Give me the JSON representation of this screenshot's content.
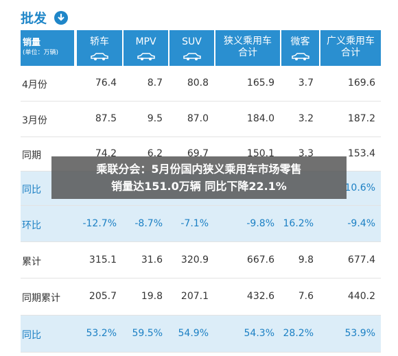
{
  "header": {
    "title": "批发"
  },
  "table": {
    "unit_header": [
      "销量",
      "(单位：万辆)"
    ],
    "columns": [
      [
        "轿车"
      ],
      [
        "MPV"
      ],
      [
        "SUV"
      ],
      [
        "狭义乘用车",
        "合计"
      ],
      [
        "微客"
      ],
      [
        "广义乘用车",
        "合计"
      ]
    ],
    "rows": [
      {
        "label": "4月份",
        "cells": [
          "76.4",
          "8.7",
          "80.8",
          "165.9",
          "3.7",
          "169.6"
        ]
      },
      {
        "label": "3月份",
        "cells": [
          "87.5",
          "9.5",
          "87.0",
          "184.0",
          "3.2",
          "187.2"
        ]
      },
      {
        "label": "同期",
        "cells": [
          "74.2",
          "6.2",
          "69.7",
          "150.1",
          "3.3",
          "153.4"
        ]
      },
      {
        "label": "同比",
        "highlight": true,
        "cells": [
          null,
          null,
          null,
          null,
          null,
          "10.6%"
        ]
      },
      {
        "label": "环比",
        "highlight": true,
        "cells": [
          "-12.7%",
          "-8.7%",
          "-7.1%",
          "-9.8%",
          "16.2%",
          "-9.4%"
        ]
      },
      {
        "label": "累计",
        "cells": [
          "315.1",
          "31.6",
          "320.9",
          "667.6",
          "9.8",
          "677.4"
        ]
      },
      {
        "label": "同期累计",
        "cells": [
          "205.7",
          "19.8",
          "207.1",
          "432.6",
          "7.6",
          "440.2"
        ]
      },
      {
        "label": "同比",
        "highlight": true,
        "cells": [
          "53.2%",
          "59.5%",
          "54.9%",
          "54.3%",
          "28.2%",
          "53.9%"
        ]
      }
    ]
  },
  "caption": {
    "lines": [
      "乘联分会：5月份国内狭义乘用车市场零售",
      "销量达151.0万辆 同比下降22.1%"
    ]
  }
}
